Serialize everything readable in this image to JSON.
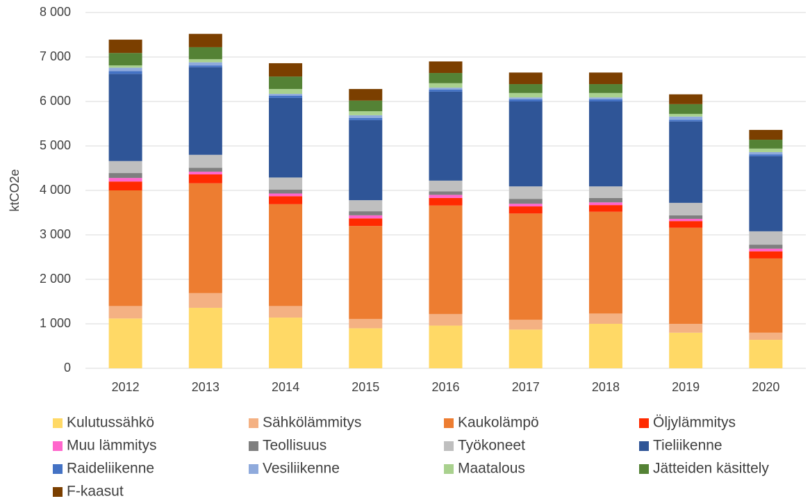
{
  "chart_data": {
    "type": "stacked_bar",
    "y_label": "ktCO2e",
    "categories": [
      "2012",
      "2013",
      "2014",
      "2015",
      "2016",
      "2017",
      "2018",
      "2019",
      "2020"
    ],
    "series": [
      {
        "name": "Kulutussähkö",
        "color": "#ffd966",
        "values": [
          1120,
          1360,
          1140,
          900,
          960,
          870,
          1000,
          800,
          640
        ]
      },
      {
        "name": "Sähkölämmitys",
        "color": "#f4b183",
        "values": [
          280,
          330,
          260,
          210,
          260,
          220,
          230,
          200,
          160
        ]
      },
      {
        "name": "Kaukolämpö",
        "color": "#ed7d31",
        "values": [
          2600,
          2470,
          2290,
          2090,
          2440,
          2390,
          2290,
          2160,
          1670
        ]
      },
      {
        "name": "Öljylämmitys",
        "color": "#ff2a00",
        "values": [
          200,
          200,
          180,
          170,
          170,
          160,
          150,
          150,
          160
        ]
      },
      {
        "name": "Muu lämmitys",
        "color": "#ff66cc",
        "values": [
          80,
          60,
          60,
          70,
          70,
          60,
          60,
          50,
          60
        ]
      },
      {
        "name": "Teollisuus",
        "color": "#7f7f7f",
        "values": [
          110,
          90,
          90,
          90,
          80,
          110,
          100,
          80,
          90
        ]
      },
      {
        "name": "Työkoneet",
        "color": "#bfbfbf",
        "values": [
          270,
          290,
          270,
          250,
          240,
          280,
          260,
          280,
          300
        ]
      },
      {
        "name": "Tieliikenne",
        "color": "#2f5597",
        "values": [
          1960,
          1970,
          1790,
          1800,
          2000,
          1910,
          1910,
          1830,
          1690
        ]
      },
      {
        "name": "Raideliikenne",
        "color": "#4472c4",
        "values": [
          60,
          40,
          50,
          50,
          50,
          50,
          50,
          40,
          40
        ]
      },
      {
        "name": "Vesiliikenne",
        "color": "#8faadc",
        "values": [
          80,
          70,
          40,
          60,
          40,
          40,
          40,
          70,
          50
        ]
      },
      {
        "name": "Maatalous",
        "color": "#a9d18e",
        "values": [
          50,
          70,
          110,
          90,
          100,
          100,
          100,
          60,
          80
        ]
      },
      {
        "name": "Jätteiden käsittely",
        "color": "#548235",
        "values": [
          280,
          270,
          280,
          240,
          230,
          200,
          200,
          220,
          200
        ]
      },
      {
        "name": "F-kaasut",
        "color": "#7b3f00",
        "values": [
          300,
          300,
          300,
          260,
          260,
          260,
          260,
          220,
          220
        ]
      }
    ],
    "ylim": [
      0,
      8000
    ],
    "yticks": [
      0,
      {
        "value": 1000,
        "label": "1 000"
      },
      {
        "value": 2000,
        "label": "2 000"
      },
      {
        "value": 3000,
        "label": "3 000"
      },
      {
        "value": 4000,
        "label": "4 000"
      },
      {
        "value": 5000,
        "label": "5 000"
      },
      {
        "value": 6000,
        "label": "6 000"
      },
      {
        "value": 7000,
        "label": "7 000"
      },
      {
        "value": 8000,
        "label": "8 000"
      }
    ],
    "grid": true
  }
}
